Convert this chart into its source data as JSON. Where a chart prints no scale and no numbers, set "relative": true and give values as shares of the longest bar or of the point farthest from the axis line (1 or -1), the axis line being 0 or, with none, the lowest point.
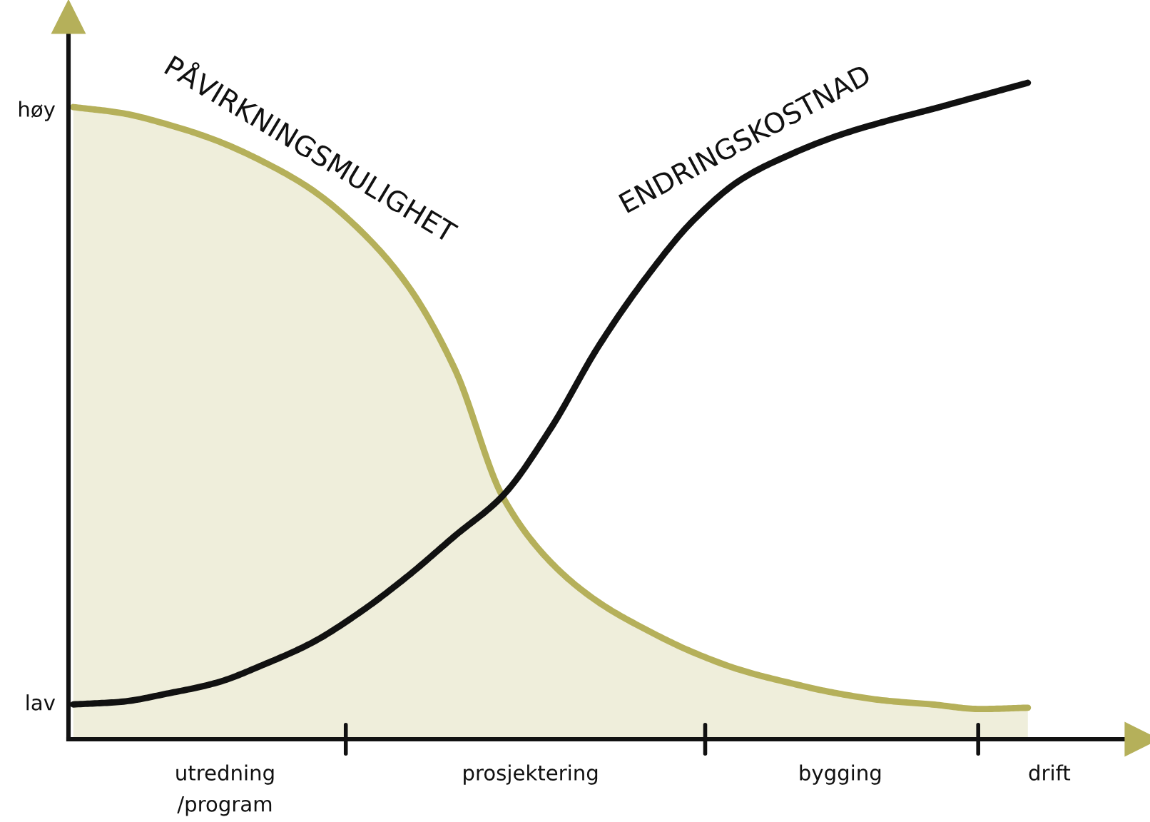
{
  "chart_data": {
    "type": "area",
    "relative": true,
    "categories": [
      null,
      null,
      null,
      null,
      null,
      null,
      null,
      null,
      null,
      null,
      null,
      null,
      null,
      null,
      null,
      null,
      null,
      null,
      null,
      null,
      null
    ],
    "annotations": [
      "høy",
      "lav",
      "utredning\n/program",
      "prosjektering",
      "bygging",
      "drift"
    ],
    "series": [
      {
        "name": "PÅVIRKNINGSMULIGHET",
        "color": "#b5b05a",
        "values": [
          0.963,
          0.954,
          0.936,
          0.912,
          0.879,
          0.837,
          0.776,
          0.692,
          0.563,
          0.369,
          0.27,
          0.209,
          0.167,
          0.132,
          0.105,
          0.086,
          0.07,
          0.059,
          0.053,
          0.046,
          0.048
        ]
      },
      {
        "name": "ENDRINGSKOSTNAD",
        "type": "line",
        "color": "#111111",
        "values": [
          0.053,
          0.057,
          0.07,
          0.086,
          0.114,
          0.147,
          0.193,
          0.248,
          0.31,
          0.371,
          0.473,
          0.598,
          0.703,
          0.791,
          0.853,
          0.89,
          0.919,
          0.941,
          0.96,
          0.98,
          1.0
        ]
      }
    ]
  }
}
